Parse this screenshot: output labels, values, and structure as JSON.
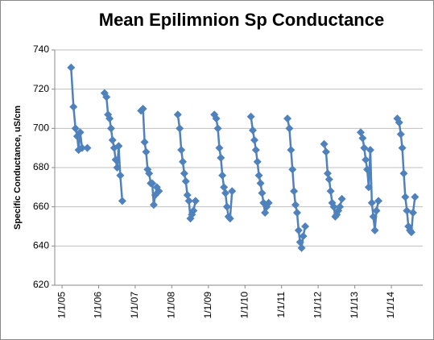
{
  "chart_data": {
    "type": "line",
    "title": "Mean Epilimnion Sp Conductance",
    "y_label": "Specific Conductance, uS/cm",
    "x": [
      "2005-04-01",
      "2005-04-25",
      "2005-05-15",
      "2005-06-01",
      "2005-06-15",
      "2005-07-01",
      "2005-07-20",
      "2005-09-10",
      "2005-12-31",
      "2006-03-01",
      "2006-03-20",
      "2006-04-05",
      "2006-04-20",
      "2006-05-05",
      "2006-05-20",
      "2006-06-05",
      "2006-06-20",
      "2006-07-05",
      "2006-07-20",
      "2006-08-05",
      "2006-08-25",
      "2006-12-31",
      "2007-03-01",
      "2007-03-20",
      "2007-04-05",
      "2007-04-20",
      "2007-05-05",
      "2007-05-20",
      "2007-06-05",
      "2007-06-20",
      "2007-07-05",
      "2007-07-20",
      "2007-08-05",
      "2007-08-25",
      "2007-12-31",
      "2008-03-01",
      "2008-03-20",
      "2008-04-05",
      "2008-04-20",
      "2008-05-05",
      "2008-05-20",
      "2008-06-05",
      "2008-06-20",
      "2008-07-05",
      "2008-07-20",
      "2008-08-05",
      "2008-08-25",
      "2008-12-31",
      "2009-03-01",
      "2009-03-20",
      "2009-04-05",
      "2009-04-20",
      "2009-05-05",
      "2009-05-20",
      "2009-06-05",
      "2009-06-20",
      "2009-07-05",
      "2009-07-20",
      "2009-08-05",
      "2009-08-25",
      "2009-12-31",
      "2010-03-01",
      "2010-03-20",
      "2010-04-05",
      "2010-04-20",
      "2010-05-05",
      "2010-05-20",
      "2010-06-05",
      "2010-06-20",
      "2010-07-05",
      "2010-07-20",
      "2010-08-05",
      "2010-08-25",
      "2010-12-31",
      "2011-03-01",
      "2011-03-20",
      "2011-04-05",
      "2011-04-20",
      "2011-05-05",
      "2011-05-20",
      "2011-06-05",
      "2011-06-20",
      "2011-07-05",
      "2011-07-20",
      "2011-08-05",
      "2011-08-25",
      "2011-12-31",
      "2012-03-01",
      "2012-03-20",
      "2012-04-05",
      "2012-04-20",
      "2012-05-05",
      "2012-05-20",
      "2012-06-05",
      "2012-06-20",
      "2012-07-05",
      "2012-07-20",
      "2012-08-05",
      "2012-08-25",
      "2012-12-31",
      "2013-03-01",
      "2013-03-20",
      "2013-04-05",
      "2013-04-20",
      "2013-05-05",
      "2013-05-20",
      "2013-06-05",
      "2013-06-20",
      "2013-07-05",
      "2013-07-20",
      "2013-08-05",
      "2013-08-25",
      "2013-12-31",
      "2014-03-01",
      "2014-03-20",
      "2014-04-05",
      "2014-04-20",
      "2014-05-05",
      "2014-05-20",
      "2014-06-05",
      "2014-06-20",
      "2014-07-05",
      "2014-07-20",
      "2014-08-05",
      "2014-08-25"
    ],
    "series": [
      {
        "name": "Specific Conductance",
        "color": "#4f81bd",
        "values": [
          731,
          711,
          700,
          696,
          689,
          698,
          690,
          690,
          null,
          718,
          716,
          707,
          705,
          700,
          694,
          690,
          684,
          680,
          691,
          676,
          663,
          null,
          709,
          710,
          693,
          688,
          679,
          677,
          672,
          672,
          661,
          666,
          670,
          668,
          null,
          707,
          700,
          689,
          683,
          677,
          673,
          666,
          663,
          654,
          656,
          658,
          663,
          null,
          707,
          705,
          700,
          690,
          685,
          676,
          670,
          667,
          660,
          655,
          654,
          668,
          null,
          706,
          699,
          694,
          689,
          683,
          676,
          672,
          667,
          662,
          657,
          660,
          662,
          null,
          705,
          700,
          689,
          679,
          668,
          661,
          657,
          648,
          642,
          639,
          645,
          650,
          null,
          692,
          688,
          677,
          674,
          668,
          662,
          660,
          655,
          656,
          658,
          660,
          664,
          null,
          698,
          695,
          690,
          684,
          679,
          670,
          689,
          662,
          655,
          648,
          658,
          663,
          null,
          705,
          703,
          697,
          690,
          677,
          665,
          658,
          650,
          648,
          647,
          657,
          665
        ]
      }
    ],
    "xlim": [
      "2004-10-20",
      "2014-11-10"
    ],
    "xticks": [
      {
        "value": "2005-01-01",
        "label": "1/1/05"
      },
      {
        "value": "2006-01-01",
        "label": "1/1/06"
      },
      {
        "value": "2007-01-01",
        "label": "1/1/07"
      },
      {
        "value": "2008-01-01",
        "label": "1/1/08"
      },
      {
        "value": "2009-01-01",
        "label": "1/1/09"
      },
      {
        "value": "2010-01-01",
        "label": "1/1/10"
      },
      {
        "value": "2011-01-01",
        "label": "1/1/11"
      },
      {
        "value": "2012-01-01",
        "label": "1/1/12"
      },
      {
        "value": "2013-01-01",
        "label": "1/1/13"
      },
      {
        "value": "2014-01-01",
        "label": "1/1/14"
      }
    ],
    "ylim": [
      620,
      740
    ],
    "yticks": [
      620,
      640,
      660,
      680,
      700,
      720,
      740
    ],
    "grid": true
  }
}
